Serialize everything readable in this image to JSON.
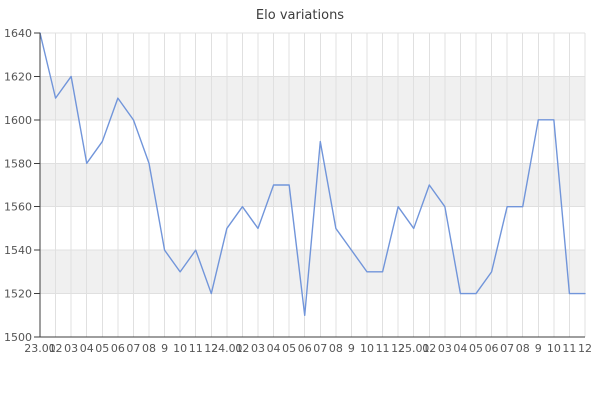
{
  "chart_data": {
    "type": "line",
    "title": "Elo variations",
    "categories": [
      "23.01",
      "02",
      "03",
      "04",
      "05",
      "06",
      "07",
      "08",
      "9",
      "10",
      "11",
      "12",
      "24.01",
      "02",
      "03",
      "04",
      "05",
      "06",
      "07",
      "08",
      "9",
      "10",
      "11",
      "12",
      "25.01",
      "02",
      "03",
      "04",
      "05",
      "06",
      "07",
      "08",
      "9",
      "10",
      "11",
      "12"
    ],
    "values": [
      1640,
      1610,
      1620,
      1580,
      1590,
      1610,
      1600,
      1580,
      1540,
      1530,
      1540,
      1520,
      1550,
      1560,
      1550,
      1570,
      1570,
      1510,
      1590,
      1550,
      1540,
      1530,
      1530,
      1560,
      1550,
      1570,
      1560,
      1520,
      1520,
      1530,
      1560,
      1560,
      1600,
      1600,
      1520,
      1520
    ],
    "xlabel": "",
    "ylabel": "",
    "ylim": [
      1500,
      1640
    ],
    "ytick_step": 20,
    "ytick_labels": [
      "1500",
      "1520",
      "1540",
      "1560",
      "1580",
      "1600",
      "1620",
      "1640"
    ],
    "grid": true,
    "legend_position": "none",
    "colors": {
      "line": "#7195da",
      "band": "#f0f0f0",
      "gridline": "#e0e0e0",
      "axis": "#3d3d3d",
      "tick_label": "#555555",
      "title": "#3c3c3c",
      "background": "#ffffff"
    }
  }
}
